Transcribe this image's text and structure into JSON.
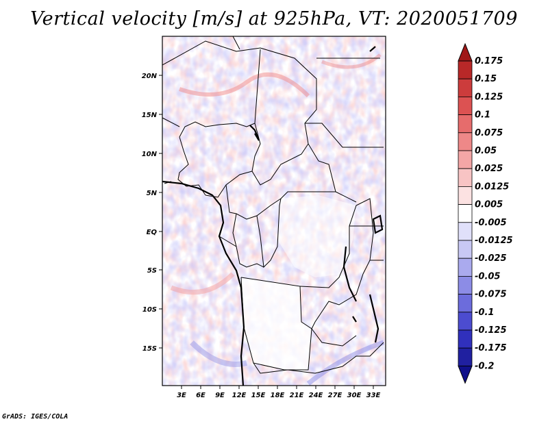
{
  "title": "Vertical velocity [m/s] at 925hPa, VT: 2020051709",
  "credit": "GrADS: IGES/COLA",
  "map": {
    "lat_ticks": [
      "20N",
      "15N",
      "10N",
      "5N",
      "EQ",
      "5S",
      "10S",
      "15S"
    ],
    "lon_ticks": [
      "3E",
      "6E",
      "9E",
      "12E",
      "15E",
      "18E",
      "21E",
      "24E",
      "27E",
      "30E",
      "33E"
    ],
    "domain": {
      "lon_range": [
        0.2,
        34.8
      ],
      "lat_range": [
        -19.8,
        24.5
      ]
    }
  },
  "colorbar": {
    "labels": [
      "0.175",
      "0.15",
      "0.125",
      "0.1",
      "0.075",
      "0.05",
      "0.025",
      "0.0125",
      "0.005",
      "-0.005",
      "-0.0125",
      "-0.025",
      "-0.05",
      "-0.075",
      "-0.1",
      "-0.125",
      "-0.175",
      "-0.2"
    ],
    "colors": [
      "#a01818",
      "#b82828",
      "#cc3c3c",
      "#dc5252",
      "#e66c6c",
      "#ee8888",
      "#f4a6a6",
      "#f8c4c4",
      "#fce2e2",
      "#ffffff",
      "#e0e0fa",
      "#c8c8f4",
      "#aaaaee",
      "#8c8ce6",
      "#6c6cdc",
      "#4c4cd0",
      "#3030bc",
      "#2020a0",
      "#10108a"
    ]
  }
}
